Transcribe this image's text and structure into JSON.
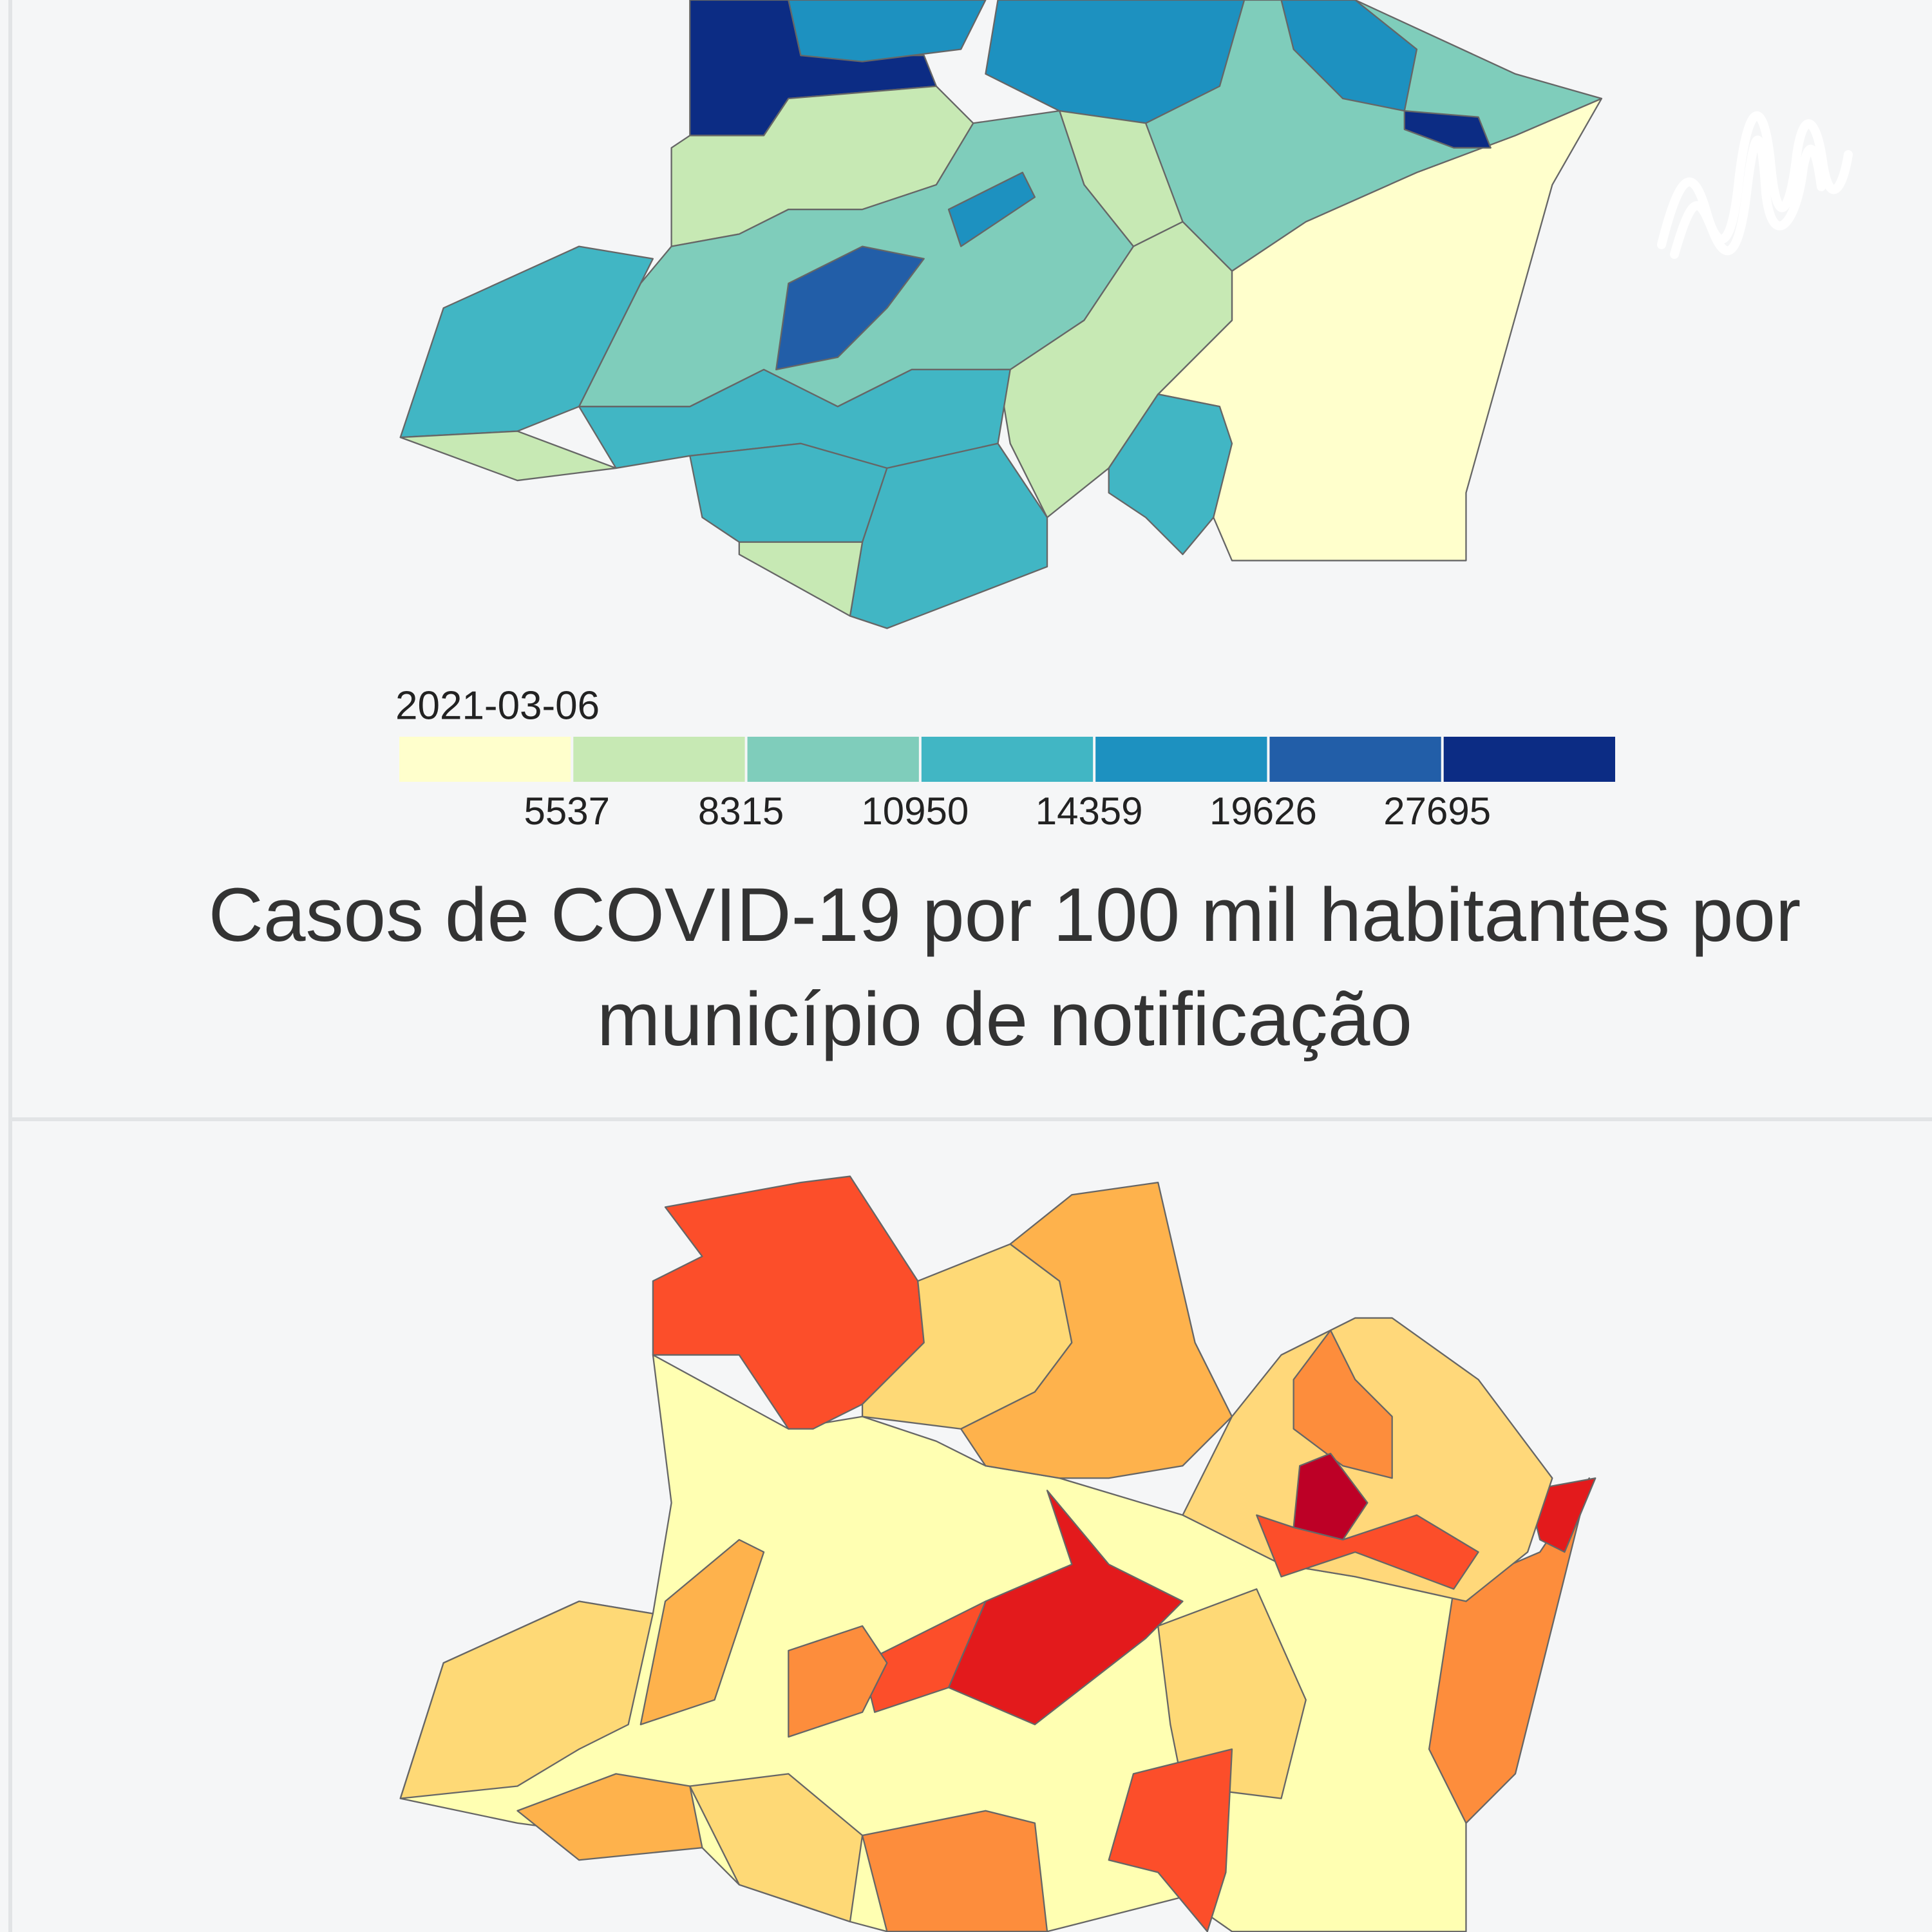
{
  "legend": {
    "title": "2021-03-06",
    "thresholds": [
      5537,
      8315,
      10950,
      14359,
      19626,
      27695
    ],
    "colors": [
      "#ffffcc",
      "#c7e9b4",
      "#7fcdbb",
      "#41b6c4",
      "#1d91c0",
      "#225ea8",
      "#0c2c84"
    ]
  },
  "caption": "Casos de COVID-19 por 100 mil habitantes por município de notificação"
}
